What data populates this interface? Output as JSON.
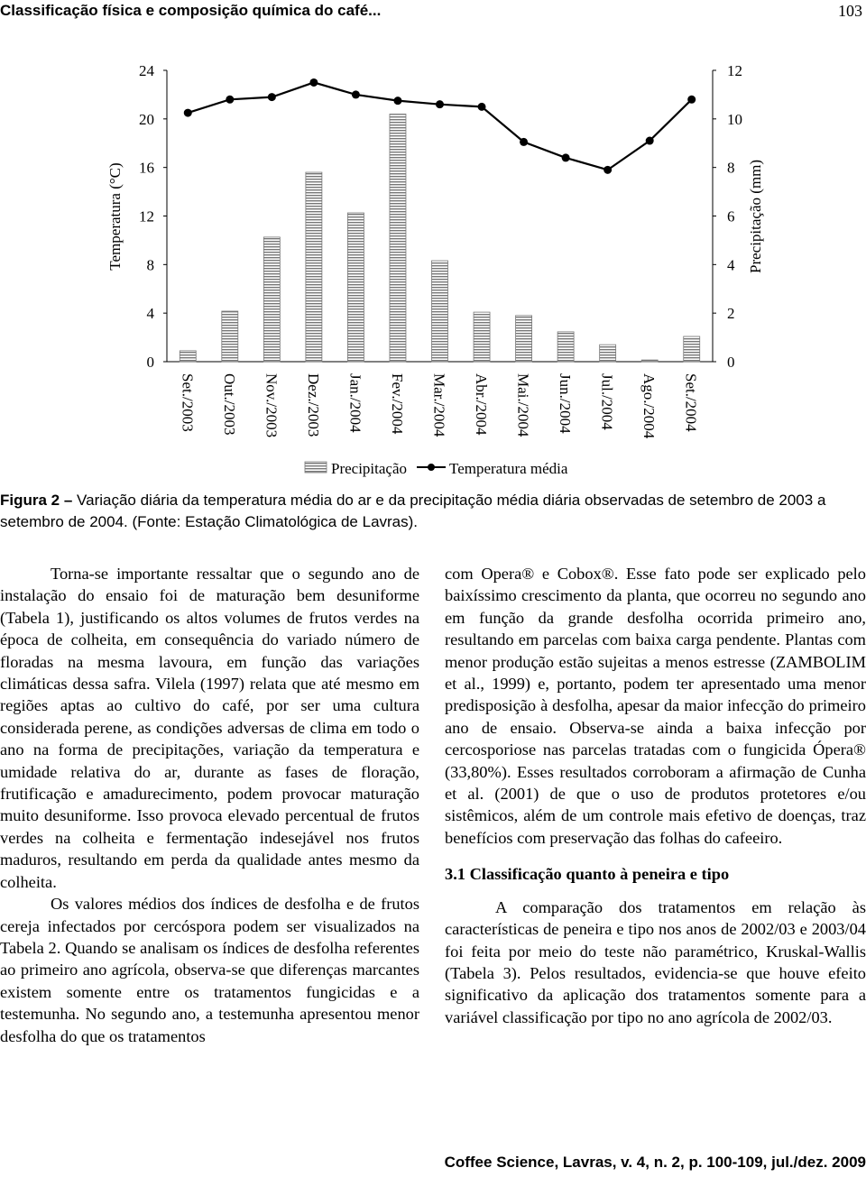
{
  "header": {
    "title": "Classificação física e composição química do café...",
    "page": "103"
  },
  "chart_data": {
    "type": "bar-line",
    "y_label": "Temperatura (°C)",
    "y2_label": "Precipitação (mm)",
    "categories": [
      "Set./2003",
      "Out./2003",
      "Nov./2003",
      "Dez./2003",
      "Jan./2004",
      "Fev./2004",
      "Mar./2004",
      "Abr./2004",
      "Mai./2004",
      "Jun./2004",
      "Jul./2004",
      "Ago./2004",
      "Set./2004"
    ],
    "ylim": [
      0,
      24
    ],
    "yticks": [
      0,
      4,
      8,
      12,
      16,
      20,
      24
    ],
    "y2lim": [
      0,
      12
    ],
    "y2ticks": [
      0,
      2,
      4,
      6,
      8,
      10,
      12
    ],
    "series": [
      {
        "name": "Precipitação",
        "type": "bar",
        "axis": "y2",
        "color": "#777777",
        "values": [
          0.45,
          2.08,
          5.13,
          7.8,
          6.13,
          10.2,
          4.16,
          2.04,
          1.9,
          1.23,
          0.7,
          0.07,
          1.04
        ]
      },
      {
        "name": "Temperatura média",
        "type": "line",
        "axis": "y",
        "color": "#000000",
        "values": [
          20.5,
          21.6,
          21.8,
          23.0,
          22.0,
          21.5,
          21.2,
          21.0,
          18.1,
          16.8,
          15.8,
          18.2,
          21.6
        ]
      }
    ]
  },
  "caption": {
    "label": "Figura 2 –",
    "text": "Variação diária da temperatura média do ar e da precipitação média diária observadas de setembro de 2003 a setembro de 2004. (Fonte: Estação Climatológica de Lavras)."
  },
  "body": {
    "left": [
      "Torna-se importante ressaltar que o segundo ano de instalação do ensaio foi de maturação bem desuniforme (Tabela 1), justificando os altos volumes de frutos verdes na época de colheita, em consequência do variado número de floradas na mesma lavoura, em função das variações climáticas dessa safra. Vilela (1997) relata que até mesmo em regiões aptas ao cultivo do café, por ser uma cultura considerada perene, as condições adversas de clima em todo o ano na forma de precipitações, variação da temperatura e umidade relativa do ar, durante as fases de floração, frutificação e amadurecimento, podem provocar maturação muito desuniforme. Isso provoca elevado percentual de frutos verdes na colheita e fermentação indesejável nos frutos maduros, resultando em perda da qualidade antes mesmo da colheita.",
      "Os valores médios dos índices de desfolha e de frutos cereja infectados por cercóspora podem ser visualizados na Tabela 2. Quando se analisam os índices de desfolha referentes ao primeiro ano agrícola, observa-se que diferenças marcantes existem somente entre os tratamentos fungicidas e a testemunha. No segundo ano, a testemunha apresentou menor desfolha do que os tratamentos"
    ],
    "right": [
      "com Opera® e Cobox®. Esse fato pode ser explicado pelo baixíssimo crescimento da planta, que ocorreu no segundo ano em função da grande desfolha ocorrida primeiro ano, resultando em parcelas com baixa carga pendente. Plantas com menor produção estão sujeitas a menos estresse (ZAMBOLIM et al., 1999) e, portanto, podem ter apresentado uma menor predisposição à desfolha, apesar da maior infecção do primeiro ano de ensaio. Observa-se ainda a baixa infecção por cercosporiose nas parcelas tratadas com o fungicida Ópera® (33,80%). Esses resultados corroboram a afirmação de Cunha et al. (2001) de que o uso de produtos protetores e/ou sistêmicos, além de um controle mais efetivo de doenças, traz benefícios com preservação das folhas do cafeeiro."
    ],
    "heading": "3.1 Classificação quanto à peneira e tipo",
    "right_after": "A comparação dos tratamentos em relação às características de peneira e tipo nos anos de 2002/03 e 2003/04 foi feita por meio do teste não paramétrico, Kruskal-Wallis (Tabela 3). Pelos resultados, evidencia-se que houve efeito significativo da aplicação dos tratamentos somente para a variável classificação por tipo no ano agrícola de 2002/03."
  },
  "footer": "Coffee Science, Lavras, v. 4, n. 2, p. 100-109, jul./dez. 2009"
}
